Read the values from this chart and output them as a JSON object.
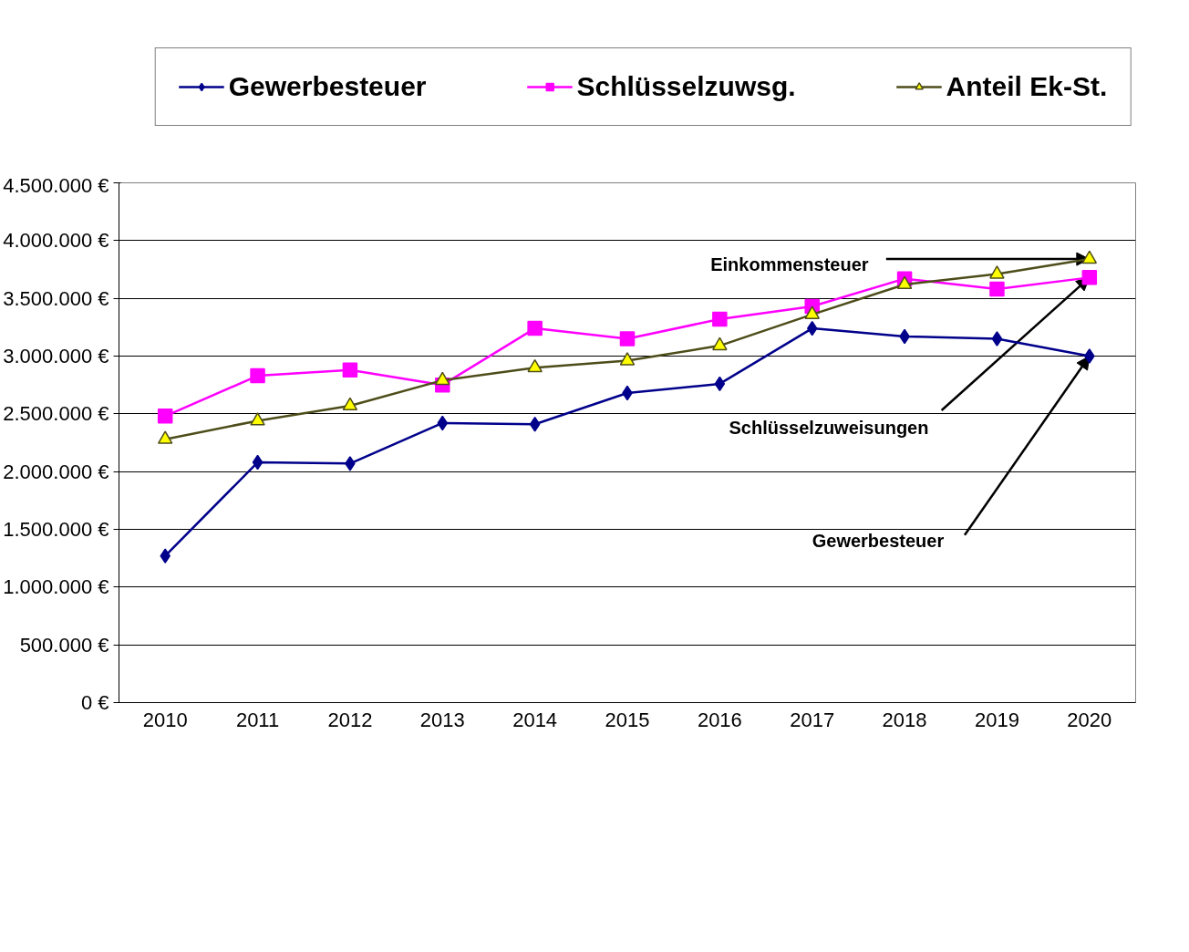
{
  "chart_data": {
    "type": "line",
    "categories": [
      "2010",
      "2011",
      "2012",
      "2013",
      "2014",
      "2015",
      "2016",
      "2017",
      "2018",
      "2019",
      "2020"
    ],
    "series": [
      {
        "name": "Gewerbesteuer",
        "color": "#00008b",
        "marker": "diamond",
        "values": [
          1270000,
          2080000,
          2070000,
          2420000,
          2410000,
          2680000,
          2760000,
          3240000,
          3170000,
          3150000,
          3000000
        ]
      },
      {
        "name": "Schlüsselzuwsg.",
        "color": "#ff00ff",
        "marker": "square",
        "values": [
          2480000,
          2830000,
          2880000,
          2750000,
          3240000,
          3150000,
          3320000,
          3430000,
          3670000,
          3580000,
          3680000
        ]
      },
      {
        "name": "Anteil Ek-St.",
        "color": "#4d4d1a",
        "marker": "triangle",
        "values": [
          2280000,
          2440000,
          2570000,
          2790000,
          2900000,
          2960000,
          3090000,
          3360000,
          3620000,
          3710000,
          3840000
        ]
      }
    ],
    "ylim": [
      0,
      4500000
    ],
    "yticks": [
      {
        "value": 0,
        "label": "0 €"
      },
      {
        "value": 500000,
        "label": "500.000 €"
      },
      {
        "value": 1000000,
        "label": "1.000.000 €"
      },
      {
        "value": 1500000,
        "label": "1.500.000 €"
      },
      {
        "value": 2000000,
        "label": "2.000.000 €"
      },
      {
        "value": 2500000,
        "label": "2.500.000 €"
      },
      {
        "value": 3000000,
        "label": "3.000.000 €"
      },
      {
        "value": 3500000,
        "label": "3.500.000 €"
      },
      {
        "value": 4000000,
        "label": "4.000.000 €"
      },
      {
        "value": 4500000,
        "label": "4.500.000 €"
      }
    ],
    "annotations": [
      {
        "text": "Einkommensteuer",
        "x": "2020",
        "y": 3840000
      },
      {
        "text": "Schlüsselzuweisungen",
        "x": "2020",
        "y": 3680000
      },
      {
        "text": "Gewerbesteuer",
        "x": "2020",
        "y": 3000000
      }
    ],
    "grid": "y",
    "legend": "top",
    "line_style": "solid"
  }
}
